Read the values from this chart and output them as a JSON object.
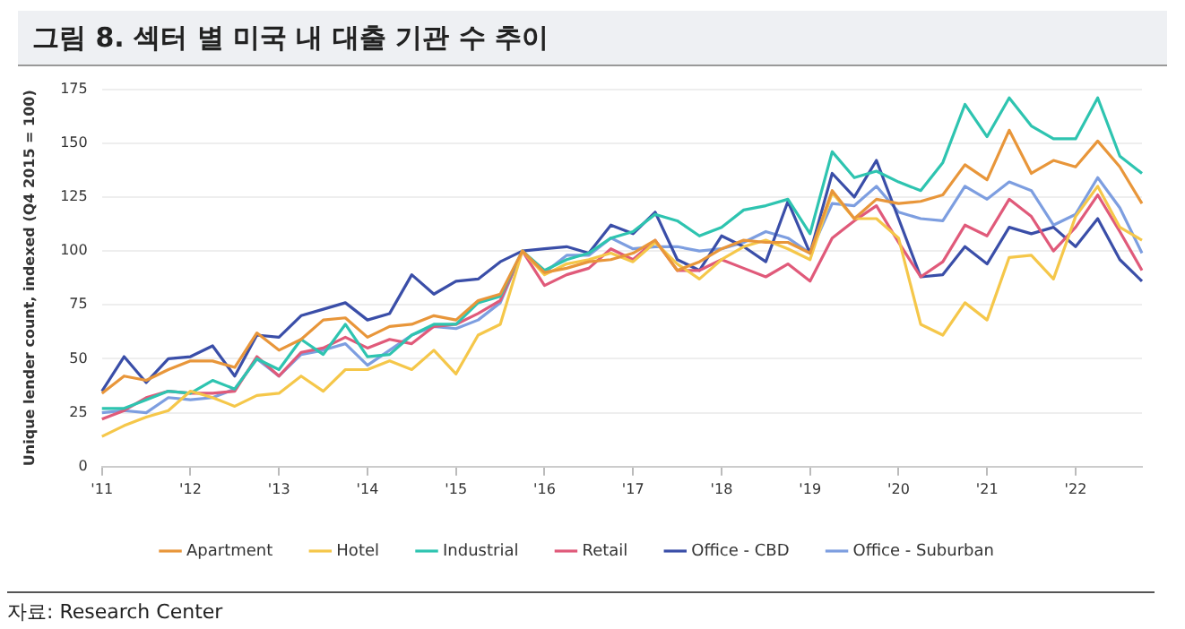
{
  "chart_data": {
    "type": "line",
    "title": "그림 8. 섹터 별 미국 내 대출 기관 수 추이",
    "ylabel": "Unique lender count, indexed (Q4 2015 = 100)",
    "categories": [
      "'11",
      null,
      null,
      null,
      "'12",
      null,
      null,
      null,
      "'13",
      null,
      null,
      null,
      "'14",
      null,
      null,
      null,
      "'15",
      null,
      null,
      null,
      "'16",
      null,
      null,
      null,
      "'17",
      null,
      null,
      null,
      "'18",
      null,
      null,
      null,
      "'19",
      null,
      null,
      null,
      "'20",
      null,
      null,
      null,
      "'21",
      null,
      null,
      null,
      "'22",
      null,
      null,
      null
    ],
    "ylim": [
      0,
      175
    ],
    "yticks": [
      0,
      25,
      50,
      75,
      100,
      125,
      150,
      175
    ],
    "grid": "y",
    "legend": "bottom",
    "marker": "none",
    "line_style": "solid",
    "annotations": [
      "자료: Research Center"
    ],
    "series": [
      {
        "name": "Apartment",
        "color": "#e8963a",
        "values": [
          34,
          42,
          40,
          45,
          49,
          49,
          46,
          62,
          54,
          59,
          68,
          69,
          60,
          65,
          66,
          70,
          68,
          77,
          80,
          100,
          90,
          92,
          95,
          96,
          99,
          105,
          91,
          95,
          101,
          105,
          104,
          104,
          99,
          128,
          115,
          124,
          122,
          123,
          126,
          140,
          133,
          156,
          136,
          142,
          139,
          151,
          139,
          122
        ]
      },
      {
        "name": "Hotel",
        "color": "#f5c74a",
        "values": [
          14,
          19,
          23,
          26,
          35,
          32,
          28,
          33,
          34,
          42,
          35,
          45,
          45,
          49,
          45,
          54,
          43,
          61,
          66,
          100,
          89,
          94,
          96,
          99,
          95,
          104,
          94,
          87,
          96,
          102,
          105,
          101,
          96,
          127,
          115,
          115,
          106,
          66,
          61,
          76,
          68,
          97,
          98,
          87,
          116,
          130,
          111,
          105
        ]
      },
      {
        "name": "Industrial",
        "color": "#2ec4b0",
        "values": [
          27,
          27,
          31,
          35,
          34,
          40,
          36,
          50,
          45,
          59,
          52,
          66,
          51,
          52,
          61,
          66,
          66,
          76,
          79,
          100,
          91,
          96,
          99,
          106,
          109,
          117,
          114,
          107,
          111,
          119,
          121,
          124,
          108,
          146,
          134,
          137,
          132,
          128,
          141,
          168,
          153,
          171,
          158,
          152,
          152,
          171,
          144,
          136
        ]
      },
      {
        "name": "Retail",
        "color": "#e05a7a",
        "values": [
          22,
          26,
          32,
          35,
          34,
          34,
          35,
          51,
          42,
          53,
          55,
          60,
          55,
          59,
          57,
          65,
          66,
          71,
          77,
          100,
          84,
          89,
          92,
          101,
          96,
          105,
          91,
          91,
          96,
          92,
          88,
          94,
          86,
          106,
          114,
          121,
          104,
          88,
          95,
          112,
          107,
          124,
          116,
          100,
          111,
          126,
          109,
          91
        ]
      },
      {
        "name": "Office - CBD",
        "color": "#3a4ea8",
        "values": [
          35,
          51,
          39,
          50,
          51,
          56,
          42,
          61,
          60,
          70,
          73,
          76,
          68,
          71,
          89,
          80,
          86,
          87,
          95,
          100,
          101,
          102,
          99,
          112,
          108,
          118,
          96,
          91,
          107,
          102,
          95,
          123,
          99,
          136,
          125,
          142,
          115,
          88,
          89,
          102,
          94,
          111,
          108,
          111,
          102,
          115,
          96,
          86
        ]
      },
      {
        "name": "Office - Suburban",
        "color": "#7d9ee0",
        "values": [
          25,
          26,
          25,
          32,
          31,
          32,
          36,
          50,
          42,
          52,
          54,
          57,
          47,
          54,
          61,
          65,
          64,
          68,
          76,
          100,
          90,
          98,
          98,
          106,
          101,
          102,
          102,
          100,
          101,
          104,
          109,
          106,
          99,
          122,
          121,
          130,
          118,
          115,
          114,
          130,
          124,
          132,
          128,
          112,
          117,
          134,
          120,
          99
        ]
      }
    ]
  }
}
